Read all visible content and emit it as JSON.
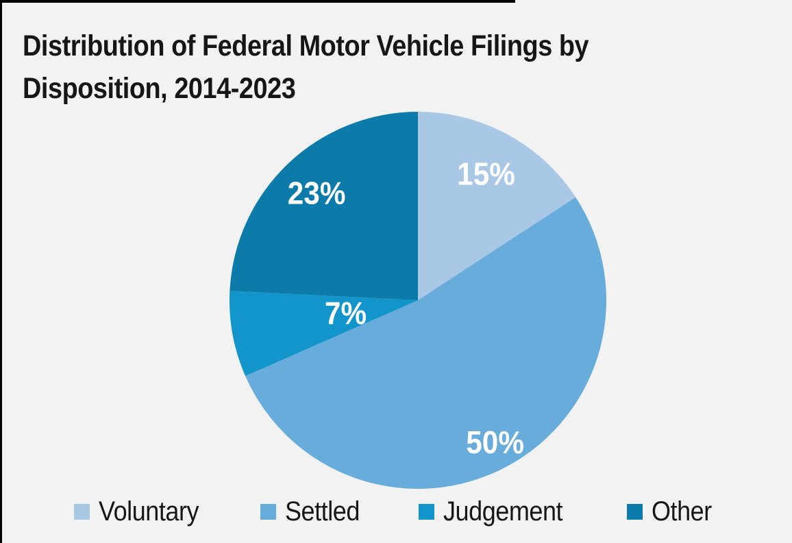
{
  "page": {
    "background_color": "#f2f2f2",
    "border_color": "#000000"
  },
  "title": "Distribution of Federal Motor Vehicle Filings by Disposition, 2014-2023",
  "title_lines": [
    "Distribution of Federal Motor Vehicle Filings by",
    "Disposition, 2014-2023"
  ],
  "chart_data": {
    "type": "pie",
    "title": "Distribution of Federal Motor Vehicle Filings by Disposition, 2014-2023",
    "categories": [
      "Voluntary",
      "Settled",
      "Judgement",
      "Other"
    ],
    "values": [
      15,
      50,
      7,
      23
    ],
    "slice_labels": [
      "15%",
      "50%",
      "7%",
      "23%"
    ],
    "colors": [
      "#a9c8e5",
      "#67acda",
      "#1195cb",
      "#0d7ba9"
    ],
    "label_color": "#ffffff",
    "start_angle": "12 o'clock",
    "direction": "clockwise",
    "legend_position": "bottom",
    "legend": [
      {
        "label": "Voluntary",
        "color": "#a9c8e5"
      },
      {
        "label": "Settled",
        "color": "#67acda"
      },
      {
        "label": "Judgement",
        "color": "#1195cb"
      },
      {
        "label": "Other",
        "color": "#0d7ba9"
      }
    ]
  }
}
